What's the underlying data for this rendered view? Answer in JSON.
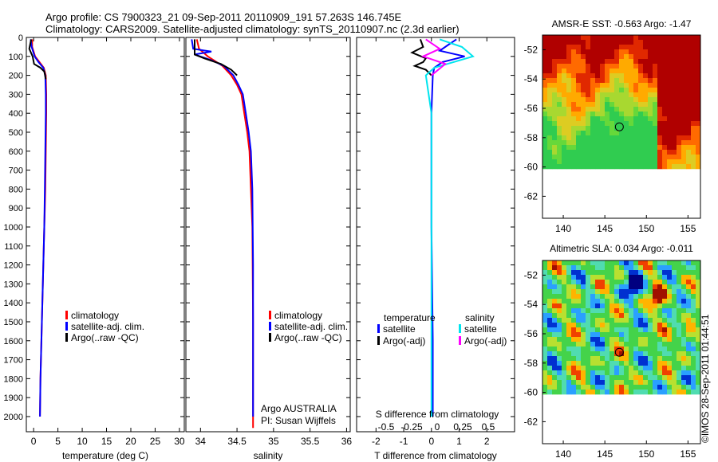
{
  "header": {
    "line1": "Argo profile: CS 7900323_21 09-Sep-2011 20110909_191 57.263S 146.745E",
    "line2": "Climatology: CARS2009. Satellite-adjusted climatology: synTS_20110907.nc (2.3d earlier)"
  },
  "colors": {
    "climatology": "#ff0000",
    "satellite": "#0000ff",
    "argo": "#000000",
    "sat_salinity": "#00e5ee",
    "argo_salinity": "#ff00ff"
  },
  "chart_data": [
    {
      "type": "line",
      "panel": "temperature",
      "xlabel": "temperature (deg C)",
      "ylabel": "",
      "xlim": [
        -1.5,
        31
      ],
      "ylim": [
        2080,
        0
      ],
      "xticks": [
        "0",
        "5",
        "10",
        "15",
        "20",
        "25",
        "30"
      ],
      "xtick_values": [
        0,
        5,
        10,
        15,
        20,
        25,
        30
      ],
      "yticks": [
        "0",
        "100",
        "200",
        "300",
        "400",
        "500",
        "600",
        "700",
        "800",
        "900",
        "1000",
        "1100",
        "1200",
        "1300",
        "1400",
        "1500",
        "1600",
        "1700",
        "1800",
        "1900",
        "2000"
      ],
      "ytick_values": [
        0,
        100,
        200,
        300,
        400,
        500,
        600,
        700,
        800,
        900,
        1000,
        1100,
        1200,
        1300,
        1400,
        1500,
        1600,
        1700,
        1800,
        1900,
        2000
      ],
      "legend": [
        "climatology",
        "satellite-adj. clim.",
        "Argo(..raw -QC)"
      ],
      "series": [
        {
          "name": "climatology",
          "color_key": "climatology",
          "x": [
            -0.3,
            -0.3,
            0.3,
            1.2,
            2.1,
            2.5,
            2.6,
            2.6,
            2.5,
            2.4,
            2.3,
            2.2,
            2.1,
            2.0,
            1.9,
            1.8,
            1.7,
            1.6,
            1.5,
            1.4,
            1.3
          ],
          "y": [
            10,
            50,
            100,
            130,
            160,
            200,
            300,
            400,
            600,
            800,
            900,
            1000,
            1100,
            1200,
            1300,
            1400,
            1500,
            1600,
            1700,
            1800,
            2000
          ]
        },
        {
          "name": "satellite-adj. clim.",
          "color_key": "satellite",
          "x": [
            -0.6,
            -0.4,
            0.2,
            1.0,
            2.0,
            2.4,
            2.5,
            2.5,
            2.4,
            2.3,
            2.2,
            2.1,
            2.0,
            1.9,
            1.8,
            1.7,
            1.6,
            1.5,
            1.4,
            1.3
          ],
          "y": [
            10,
            50,
            100,
            130,
            160,
            200,
            300,
            400,
            600,
            800,
            1000,
            1100,
            1200,
            1300,
            1400,
            1500,
            1600,
            1700,
            1800,
            2000
          ]
        },
        {
          "name": "Argo(..raw -QC)",
          "color_key": "argo",
          "x": [
            -0.5,
            -0.9,
            -0.2,
            0.1,
            1.4,
            2.2,
            2.5
          ],
          "y": [
            10,
            60,
            100,
            140,
            160,
            180,
            220
          ]
        }
      ]
    },
    {
      "type": "line",
      "panel": "salinity",
      "xlabel": "salinity",
      "xlim": [
        33.8,
        36.05
      ],
      "ylim": [
        2080,
        0
      ],
      "xticks": [
        "34",
        "34.5",
        "35",
        "35.5",
        "36"
      ],
      "xtick_values": [
        34,
        34.5,
        35,
        35.5,
        36
      ],
      "legend": [
        "climatology",
        "satellite-adj. clim.",
        "Argo(..raw -QC)"
      ],
      "annotation": [
        "Argo AUSTRALIA",
        "PI: Susan Wijffels"
      ],
      "series": [
        {
          "name": "climatology",
          "color_key": "climatology",
          "x": [
            33.95,
            33.98,
            34.1,
            34.3,
            34.42,
            34.5,
            34.56,
            34.6,
            34.64,
            34.67,
            34.69,
            34.71,
            34.72,
            34.72
          ],
          "y": [
            10,
            60,
            100,
            150,
            200,
            250,
            300,
            400,
            500,
            600,
            800,
            1000,
            1500,
            2060
          ]
        },
        {
          "name": "satellite-adj. clim.",
          "color_key": "satellite",
          "x": [
            33.88,
            33.9,
            34.15,
            33.92,
            34.15,
            34.32,
            34.45,
            34.52,
            34.58,
            34.62,
            34.66,
            34.69,
            34.71,
            34.72,
            34.72
          ],
          "y": [
            10,
            60,
            75,
            90,
            120,
            150,
            200,
            250,
            300,
            400,
            500,
            600,
            800,
            1200,
            2000
          ]
        },
        {
          "name": "Argo(..raw -QC)",
          "color_key": "argo",
          "x": [
            33.92,
            33.92,
            34.05,
            34.28,
            34.42,
            34.5
          ],
          "y": [
            10,
            90,
            110,
            140,
            170,
            200
          ]
        }
      ]
    },
    {
      "type": "line",
      "panel": "difference",
      "xlabel": "T difference from climatology",
      "title": "S difference from climatology",
      "xlim": [
        -2.7,
        3.0
      ],
      "ylim": [
        2080,
        0
      ],
      "xticks": [
        "-2",
        "-1",
        "0",
        "1",
        "2"
      ],
      "xtick_values": [
        -2,
        -1,
        0,
        1,
        2
      ],
      "top_xticks": [
        "-0.5",
        "-0.25",
        "0",
        "0.25",
        "0.5"
      ],
      "legend": {
        "temperature": [
          "satellite",
          "Argo(-adj)"
        ],
        "salinity": [
          "satellite",
          "Argo(-adj)"
        ],
        "headers": [
          "temperature",
          "salinity"
        ]
      },
      "series": [
        {
          "name": "satellite",
          "color_key": "satellite",
          "x": [
            0.9,
            0.6,
            0.3,
            1.2,
            0.4,
            0.1,
            0.05,
            0.0,
            0.0,
            0.05,
            0.05
          ],
          "y": [
            10,
            40,
            70,
            100,
            130,
            160,
            200,
            400,
            1000,
            1600,
            2000
          ]
        },
        {
          "name": "Argo(-adj)",
          "color_key": "argo",
          "x": [
            -0.4,
            -0.3,
            -0.7,
            -0.2,
            -0.3,
            -0.6,
            -0.2,
            0.0
          ],
          "y": [
            10,
            50,
            80,
            110,
            130,
            150,
            170,
            200
          ]
        },
        {
          "name": "satellite",
          "color_key": "sat_salinity",
          "x": [
            0.3,
            1.1,
            1.5,
            0.8,
            0.1,
            -0.2,
            0.0,
            0.0,
            0.0
          ],
          "y": [
            10,
            50,
            100,
            130,
            160,
            200,
            400,
            1000,
            2000
          ]
        },
        {
          "name": "Argo(-adj)",
          "color_key": "argo_salinity",
          "x": [
            -0.2,
            0.3,
            -0.3,
            0.5,
            0.0
          ],
          "y": [
            10,
            60,
            100,
            140,
            200
          ]
        }
      ]
    },
    {
      "type": "heatmap",
      "panel": "sst-map",
      "title": "AMSR-E SST: -0.563 Argo: -1.47",
      "xlim": [
        137.5,
        156.5
      ],
      "ylim": [
        -63.5,
        -51
      ],
      "xticks": [
        "140",
        "145",
        "150",
        "155"
      ],
      "xtick_values": [
        140,
        145,
        150,
        155
      ],
      "yticks": [
        "-52",
        "-54",
        "-56",
        "-58",
        "-60",
        "-62"
      ],
      "ytick_values": [
        -52,
        -54,
        -56,
        -58,
        -60,
        -62
      ],
      "data_ylim": [
        -60,
        -51
      ],
      "marker": {
        "lon": 146.745,
        "lat": -57.263
      }
    },
    {
      "type": "heatmap",
      "panel": "sla-map",
      "title": "Altimetric SLA: 0.034 Argo: -0.011",
      "xlim": [
        137.5,
        156.5
      ],
      "ylim": [
        -63.5,
        -51
      ],
      "xticks": [
        "140",
        "145",
        "150",
        "155"
      ],
      "xtick_values": [
        140,
        145,
        150,
        155
      ],
      "yticks": [
        "-52",
        "-54",
        "-56",
        "-58",
        "-60",
        "-62"
      ],
      "ytick_values": [
        -52,
        -54,
        -56,
        -58,
        -60,
        -62
      ],
      "data_ylim": [
        -60,
        -51
      ],
      "marker": {
        "lon": 146.745,
        "lat": -57.263
      }
    }
  ],
  "credit": "©IMOS 28-Sep-2011 01:44:51"
}
